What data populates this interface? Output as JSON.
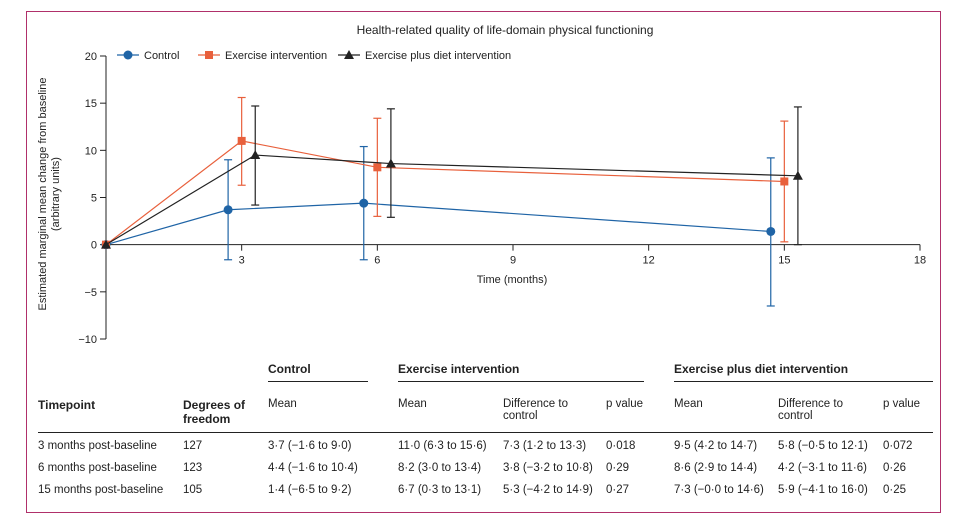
{
  "chart_data": {
    "type": "line",
    "title": "Health-related quality of life-domain physical functioning",
    "xlabel": "Time (months)",
    "ylabel_line1": "Estimated marginal mean change from baseline",
    "ylabel_line2": "(arbitrary units)",
    "xlim": [
      0,
      18
    ],
    "ylim": [
      -10,
      20
    ],
    "xticks": [
      3,
      6,
      9,
      12,
      15,
      18
    ],
    "yticks": [
      -10,
      -5,
      0,
      5,
      10,
      15,
      20
    ],
    "legend_position": "top-left",
    "series": [
      {
        "name": "Control",
        "color": "#1f64a6",
        "marker": "circle",
        "offset": -0.3,
        "x": [
          0,
          3,
          6,
          15
        ],
        "y": [
          0,
          3.7,
          4.4,
          1.4
        ],
        "lower": [
          null,
          -1.6,
          -1.6,
          -6.5
        ],
        "upper": [
          null,
          9.0,
          10.4,
          9.2
        ]
      },
      {
        "name": "Exercise intervention",
        "color": "#e8603c",
        "marker": "square",
        "offset": 0,
        "x": [
          0,
          3,
          6,
          15
        ],
        "y": [
          0,
          11.0,
          8.2,
          6.7
        ],
        "lower": [
          null,
          6.3,
          3.0,
          0.3
        ],
        "upper": [
          null,
          15.6,
          13.4,
          13.1
        ]
      },
      {
        "name": "Exercise plus diet intervention",
        "color": "#222222",
        "marker": "triangle",
        "offset": 0.3,
        "x": [
          0,
          3,
          6,
          15
        ],
        "y": [
          0,
          9.5,
          8.6,
          7.3
        ],
        "lower": [
          null,
          4.2,
          2.9,
          -0.0
        ],
        "upper": [
          null,
          14.7,
          14.4,
          14.6
        ]
      }
    ]
  },
  "table": {
    "groups": {
      "control": "Control",
      "exercise": "Exercise intervention",
      "diet": "Exercise plus diet intervention"
    },
    "headers": {
      "timepoint": "Timepoint",
      "df_line1": "Degrees of",
      "df_line2": "freedom",
      "mean": "Mean",
      "diff_line1": "Difference to",
      "diff_line2": "control",
      "pvalue": "p value"
    },
    "rows": [
      {
        "timepoint": "3 months post-baseline",
        "df": "127",
        "control_mean": "3·7 (−1·6 to 9·0)",
        "ex_mean": "11·0 (6·3 to 15·6)",
        "ex_diff": "7·3 (1·2 to 13·3)",
        "ex_p": "0·018",
        "diet_mean": "9·5 (4·2 to 14·7)",
        "diet_diff": "5·8 (−0·5 to 12·1)",
        "diet_p": "0·072"
      },
      {
        "timepoint": "6 months post-baseline",
        "df": "123",
        "control_mean": "4·4 (−1·6 to 10·4)",
        "ex_mean": "8·2 (3·0 to 13·4)",
        "ex_diff": "3·8 (−3·2 to 10·8)",
        "ex_p": "0·29",
        "diet_mean": "8·6 (2·9 to 14·4)",
        "diet_diff": "4·2 (−3·1 to 11·6)",
        "diet_p": "0·26"
      },
      {
        "timepoint": "15 months post-baseline",
        "df": "105",
        "control_mean": "1·4 (−6·5 to 9·2)",
        "ex_mean": "6·7 (0·3 to 13·1)",
        "ex_diff": "5·3 (−4·2 to 14·9)",
        "ex_p": "0·27",
        "diet_mean": "7·3 (−0·0 to 14·6)",
        "diet_diff": "5·9 (−4·1 to 16·0)",
        "diet_p": "0·25"
      }
    ]
  }
}
